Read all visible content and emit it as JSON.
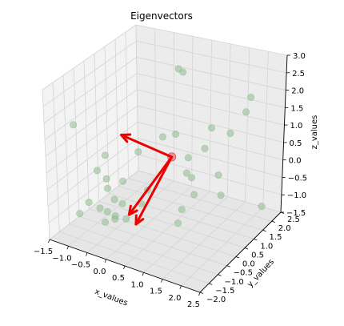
{
  "chart_data": {
    "type": "scatter",
    "projection": "3d",
    "title": "Eigenvectors",
    "xlabel": "x_values",
    "ylabel": "y_values",
    "zlabel": "z_values",
    "xlim": [
      -1.5,
      2.5
    ],
    "ylim": [
      -2.0,
      2.5
    ],
    "zlim": [
      -1.5,
      3.0
    ],
    "grid": true,
    "x_ticks": [
      "−1.5",
      "−1.0",
      "−0.5",
      "0.0",
      "0.5",
      "1.0",
      "1.5",
      "2.0",
      "2.5"
    ],
    "y_ticks": [
      "−2.0",
      "−1.5",
      "−1.0",
      "−0.5",
      "0.0",
      "0.5",
      "1.0",
      "1.5",
      "2.0",
      "2.5"
    ],
    "z_ticks": [
      "−1.5",
      "−1.0",
      "−0.5",
      "0.0",
      "0.5",
      "1.0",
      "1.5",
      "2.0",
      "2.5",
      "3.0"
    ],
    "point_color": "#8fbc8f",
    "mean_color": "#f08080",
    "arrow_color": "#ee0000",
    "points": [
      [
        0.55,
        0.75,
        3.0
      ],
      [
        0.51,
        1.05,
        2.75
      ],
      [
        1.6,
        2.45,
        1.6
      ],
      [
        2.15,
        1.1,
        2.0
      ],
      [
        -1.4,
        -0.8,
        1.45
      ],
      [
        1.3,
        1.0,
        1.35
      ],
      [
        1.5,
        1.6,
        0.95
      ],
      [
        0.45,
        1.45,
        0.0
      ],
      [
        0.0,
        1.0,
        0.7
      ],
      [
        0.4,
        0.9,
        0.95
      ],
      [
        1.05,
        1.15,
        0.6
      ],
      [
        1.4,
        1.2,
        -0.1
      ],
      [
        0.9,
        0.5,
        0.15
      ],
      [
        0.0,
        0.2,
        -0.5
      ],
      [
        0.75,
        1.05,
        -0.3
      ],
      [
        1.0,
        0.7,
        -0.55
      ],
      [
        1.6,
        0.95,
        -0.5
      ],
      [
        0.9,
        0.25,
        -0.8
      ],
      [
        0.9,
        0.05,
        -1.1
      ],
      [
        2.4,
        1.6,
        -0.9
      ],
      [
        0.0,
        -0.25,
        0.85
      ],
      [
        -0.8,
        -0.4,
        0.55
      ],
      [
        -1.0,
        -0.45,
        0.05
      ],
      [
        -0.7,
        -0.55,
        -0.05
      ],
      [
        -0.45,
        -0.2,
        -0.2
      ],
      [
        -0.65,
        -0.6,
        -0.3
      ],
      [
        -0.5,
        -0.55,
        -0.6
      ],
      [
        -1.0,
        -0.9,
        -0.7
      ],
      [
        -1.15,
        -1.1,
        -1.0
      ],
      [
        0.35,
        -0.8,
        -0.3
      ],
      [
        -0.05,
        -1.0,
        -0.35
      ],
      [
        -0.15,
        -1.2,
        -0.75
      ],
      [
        -0.3,
        -0.9,
        -0.85
      ],
      [
        0.25,
        -1.4,
        -0.5
      ],
      [
        -0.25,
        -1.75,
        -0.2
      ],
      [
        -0.35,
        -1.2,
        -0.6
      ],
      [
        -0.15,
        -1.7,
        -0.6
      ]
    ],
    "mean": [
      0.5,
      0.5,
      0.5
    ],
    "eigenvectors_end": [
      [
        -0.2,
        -0.7,
        1.5
      ],
      [
        -0.3,
        -0.2,
        -1.15
      ],
      [
        0.25,
        -0.9,
        -0.9
      ]
    ]
  }
}
